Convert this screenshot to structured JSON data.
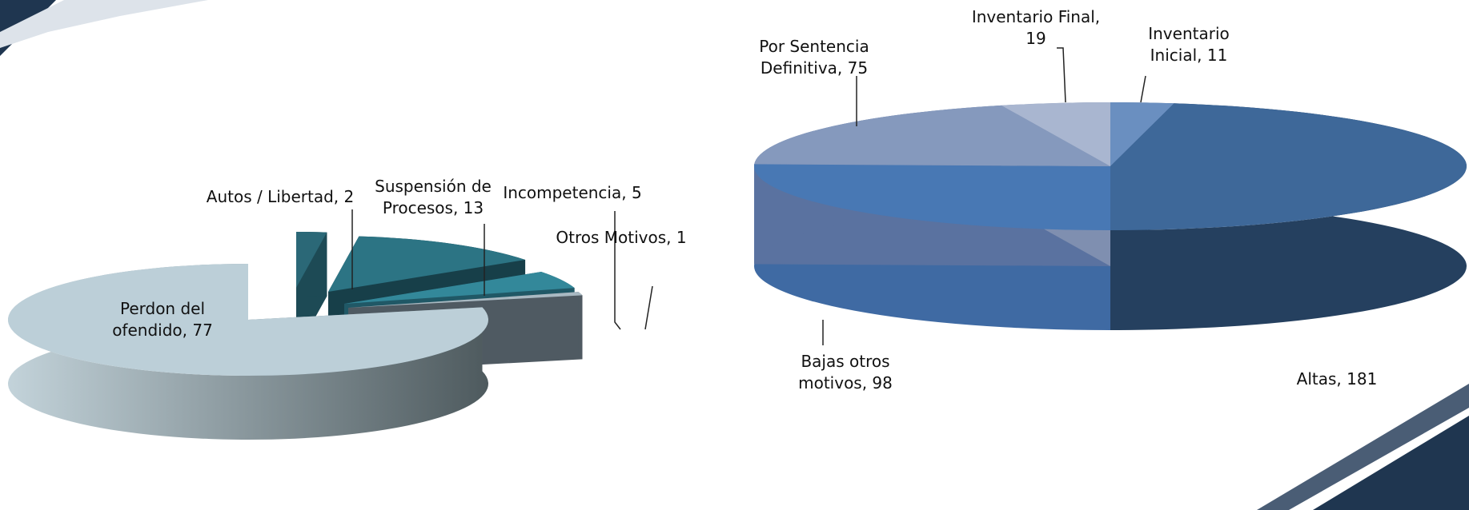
{
  "chart_data": [
    {
      "type": "pie",
      "value_labels": [
        "Autos / Libertad, 2",
        "Suspensión de\nProcesos, 13",
        "Incompetencia, 5",
        "Otros Motivos, 1",
        "Perdon del\nofendido, 77"
      ],
      "values": [
        2,
        13,
        5,
        1,
        77
      ],
      "colors": [
        "#2b6877",
        "#2c7484",
        "#33889a",
        "#a9b9c2",
        "#bccfd8"
      ],
      "side_colors": [
        "#1d4a55",
        "#173f49",
        "#205866",
        "#4f5a62",
        "#6d7f87"
      ]
    },
    {
      "type": "pie",
      "value_labels": [
        "Inventario\nInicial, 11",
        "Altas, 181",
        "Bajas otros\nmotivos, 98",
        "Por Sentencia\nDefinitiva, 75",
        "Inventario Final,\n19"
      ],
      "values": [
        11,
        181,
        98,
        75,
        19
      ],
      "colors": [
        "#6a8fc0",
        "#3e6899",
        "#4878b4",
        "#8599bd",
        "#a9b6d0"
      ],
      "side_colors": [
        "#4a6c98",
        "#25405f",
        "#3f6aa3",
        "#5a72a0",
        "#7f8fb0"
      ]
    }
  ]
}
